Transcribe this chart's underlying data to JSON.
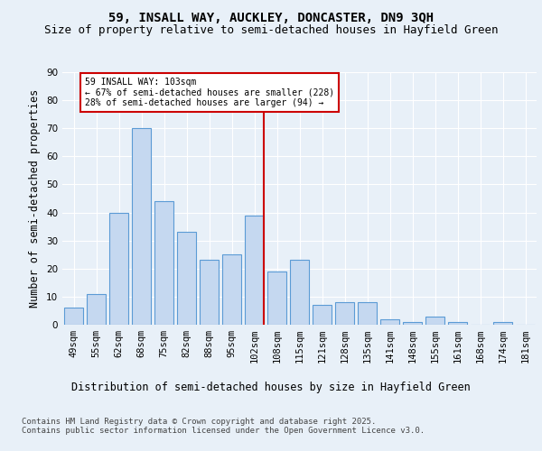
{
  "title1": "59, INSALL WAY, AUCKLEY, DONCASTER, DN9 3QH",
  "title2": "Size of property relative to semi-detached houses in Hayfield Green",
  "xlabel": "Distribution of semi-detached houses by size in Hayfield Green",
  "ylabel": "Number of semi-detached properties",
  "categories": [
    "49sqm",
    "55sqm",
    "62sqm",
    "68sqm",
    "75sqm",
    "82sqm",
    "88sqm",
    "95sqm",
    "102sqm",
    "108sqm",
    "115sqm",
    "121sqm",
    "128sqm",
    "135sqm",
    "141sqm",
    "148sqm",
    "155sqm",
    "161sqm",
    "168sqm",
    "174sqm",
    "181sqm"
  ],
  "values": [
    6,
    11,
    40,
    70,
    44,
    33,
    23,
    25,
    39,
    19,
    23,
    7,
    8,
    8,
    2,
    1,
    3,
    1,
    0,
    1,
    0
  ],
  "bar_color": "#c5d8f0",
  "bar_edge_color": "#5b9bd5",
  "vline_label": "59 INSALL WAY: 103sqm",
  "annotation_smaller": "← 67% of semi-detached houses are smaller (228)",
  "annotation_larger": "28% of semi-detached houses are larger (94) →",
  "annotation_box_color": "#ffffff",
  "annotation_box_edge": "#cc0000",
  "vline_color": "#cc0000",
  "ylim": [
    0,
    90
  ],
  "yticks": [
    0,
    10,
    20,
    30,
    40,
    50,
    60,
    70,
    80,
    90
  ],
  "background_color": "#e8f0f8",
  "plot_background": "#e8f0f8",
  "footer": "Contains HM Land Registry data © Crown copyright and database right 2025.\nContains public sector information licensed under the Open Government Licence v3.0.",
  "title_fontsize": 10,
  "subtitle_fontsize": 9,
  "axis_label_fontsize": 8.5,
  "tick_fontsize": 7.5,
  "footer_fontsize": 6.5
}
